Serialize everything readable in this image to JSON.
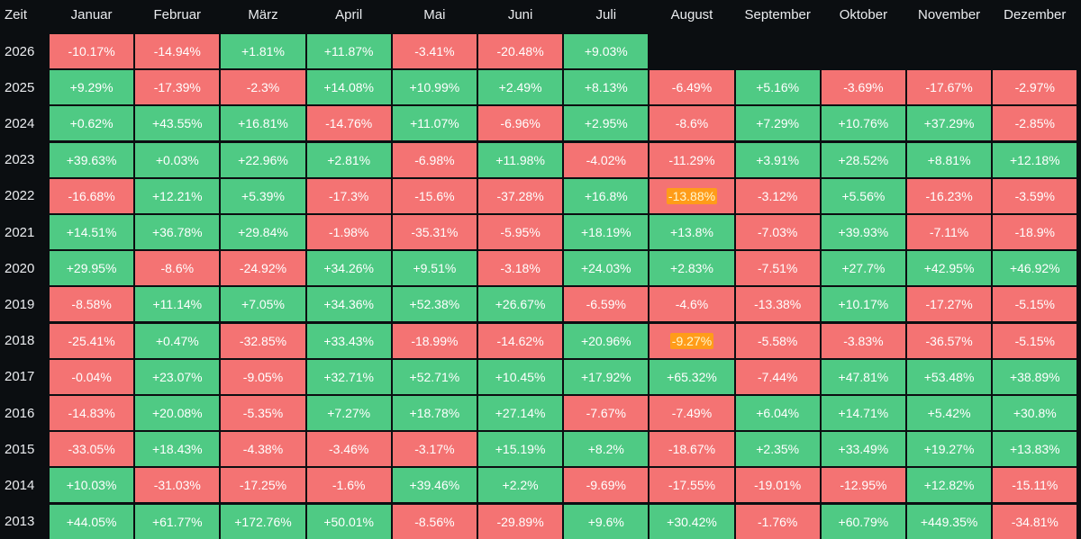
{
  "chart_data": {
    "type": "heatmap",
    "corner_label": "Zeit",
    "columns": [
      "Januar",
      "Februar",
      "März",
      "April",
      "Mai",
      "Juni",
      "Juli",
      "August",
      "September",
      "Oktober",
      "November",
      "Dezember"
    ],
    "rows": [
      {
        "year": "2026",
        "values": [
          "-10.17%",
          "-14.94%",
          "+1.81%",
          "+11.87%",
          "-3.41%",
          "-20.48%",
          "+9.03%",
          null,
          null,
          null,
          null,
          null
        ]
      },
      {
        "year": "2025",
        "values": [
          "+9.29%",
          "-17.39%",
          "-2.3%",
          "+14.08%",
          "+10.99%",
          "+2.49%",
          "+8.13%",
          "-6.49%",
          "+5.16%",
          "-3.69%",
          "-17.67%",
          "-2.97%"
        ]
      },
      {
        "year": "2024",
        "values": [
          "+0.62%",
          "+43.55%",
          "+16.81%",
          "-14.76%",
          "+11.07%",
          "-6.96%",
          "+2.95%",
          "-8.6%",
          "+7.29%",
          "+10.76%",
          "+37.29%",
          "-2.85%"
        ]
      },
      {
        "year": "2023",
        "values": [
          "+39.63%",
          "+0.03%",
          "+22.96%",
          "+2.81%",
          "-6.98%",
          "+11.98%",
          "-4.02%",
          "-11.29%",
          "+3.91%",
          "+28.52%",
          "+8.81%",
          "+12.18%"
        ]
      },
      {
        "year": "2022",
        "values": [
          "-16.68%",
          "+12.21%",
          "+5.39%",
          "-17.3%",
          "-15.6%",
          "-37.28%",
          "+16.8%",
          "-13.88%",
          "-3.12%",
          "+5.56%",
          "-16.23%",
          "-3.59%"
        ]
      },
      {
        "year": "2021",
        "values": [
          "+14.51%",
          "+36.78%",
          "+29.84%",
          "-1.98%",
          "-35.31%",
          "-5.95%",
          "+18.19%",
          "+13.8%",
          "-7.03%",
          "+39.93%",
          "-7.11%",
          "-18.9%"
        ]
      },
      {
        "year": "2020",
        "values": [
          "+29.95%",
          "-8.6%",
          "-24.92%",
          "+34.26%",
          "+9.51%",
          "-3.18%",
          "+24.03%",
          "+2.83%",
          "-7.51%",
          "+27.7%",
          "+42.95%",
          "+46.92%"
        ]
      },
      {
        "year": "2019",
        "values": [
          "-8.58%",
          "+11.14%",
          "+7.05%",
          "+34.36%",
          "+52.38%",
          "+26.67%",
          "-6.59%",
          "-4.6%",
          "-13.38%",
          "+10.17%",
          "-17.27%",
          "-5.15%"
        ]
      },
      {
        "year": "2018",
        "values": [
          "-25.41%",
          "+0.47%",
          "-32.85%",
          "+33.43%",
          "-18.99%",
          "-14.62%",
          "+20.96%",
          "-9.27%",
          "-5.58%",
          "-3.83%",
          "-36.57%",
          "-5.15%"
        ]
      },
      {
        "year": "2017",
        "values": [
          "-0.04%",
          "+23.07%",
          "-9.05%",
          "+32.71%",
          "+52.71%",
          "+10.45%",
          "+17.92%",
          "+65.32%",
          "-7.44%",
          "+47.81%",
          "+53.48%",
          "+38.89%"
        ]
      },
      {
        "year": "2016",
        "values": [
          "-14.83%",
          "+20.08%",
          "-5.35%",
          "+7.27%",
          "+18.78%",
          "+27.14%",
          "-7.67%",
          "-7.49%",
          "+6.04%",
          "+14.71%",
          "+5.42%",
          "+30.8%"
        ]
      },
      {
        "year": "2015",
        "values": [
          "-33.05%",
          "+18.43%",
          "-4.38%",
          "-3.46%",
          "-3.17%",
          "+15.19%",
          "+8.2%",
          "-18.67%",
          "+2.35%",
          "+33.49%",
          "+19.27%",
          "+13.83%"
        ]
      },
      {
        "year": "2014",
        "values": [
          "+10.03%",
          "-31.03%",
          "-17.25%",
          "-1.6%",
          "+39.46%",
          "+2.2%",
          "-9.69%",
          "-17.55%",
          "-19.01%",
          "-12.95%",
          "+12.82%",
          "-15.11%"
        ]
      },
      {
        "year": "2013",
        "values": [
          "+44.05%",
          "+61.77%",
          "+172.76%",
          "+50.01%",
          "-8.56%",
          "-29.89%",
          "+9.6%",
          "+30.42%",
          "-1.76%",
          "+60.79%",
          "+449.35%",
          "-34.81%"
        ]
      }
    ],
    "highlighted_cells": [
      {
        "year": "2022",
        "month": "August"
      },
      {
        "year": "2018",
        "month": "August"
      }
    ]
  },
  "colors": {
    "background": "#0b0e11",
    "positive": "#4fca84",
    "negative": "#f47373",
    "highlight": "#ff9c19",
    "text": "#eaecef"
  }
}
